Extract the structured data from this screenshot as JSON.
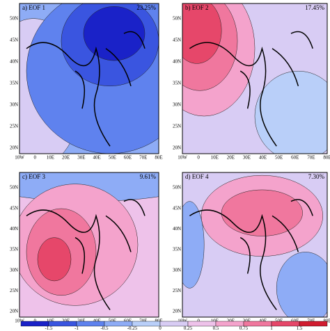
{
  "panels": [
    {
      "label": "a) EOF 1",
      "variance": "23.25%"
    },
    {
      "label": "b) EOF 2",
      "variance": "17.45%"
    },
    {
      "label": "c) EOF 3",
      "variance": "9.61%"
    },
    {
      "label": "d) EOF 4",
      "variance": "7.30%"
    }
  ],
  "lat_labels": [
    "50N",
    "45N",
    "40N",
    "35N",
    "30N",
    "25N",
    "20N"
  ],
  "lon_labels": [
    "10W",
    "0",
    "10E",
    "20E",
    "30E",
    "40E",
    "50E",
    "60E",
    "70E",
    "80E"
  ],
  "colorbar": {
    "labels": [
      "-1.5",
      "-1",
      "-0.5",
      "-0.25",
      "0",
      "0.25",
      "0.5",
      "0.75",
      "1",
      "1.5"
    ],
    "colors": [
      "#1a22c8",
      "#3a55e0",
      "#5f82ee",
      "#8eacf6",
      "#b9cff9",
      "#d8ccf4",
      "#eec2ea",
      "#f4a3cc",
      "#f0779e",
      "#e6476a",
      "#d01c30"
    ]
  }
}
